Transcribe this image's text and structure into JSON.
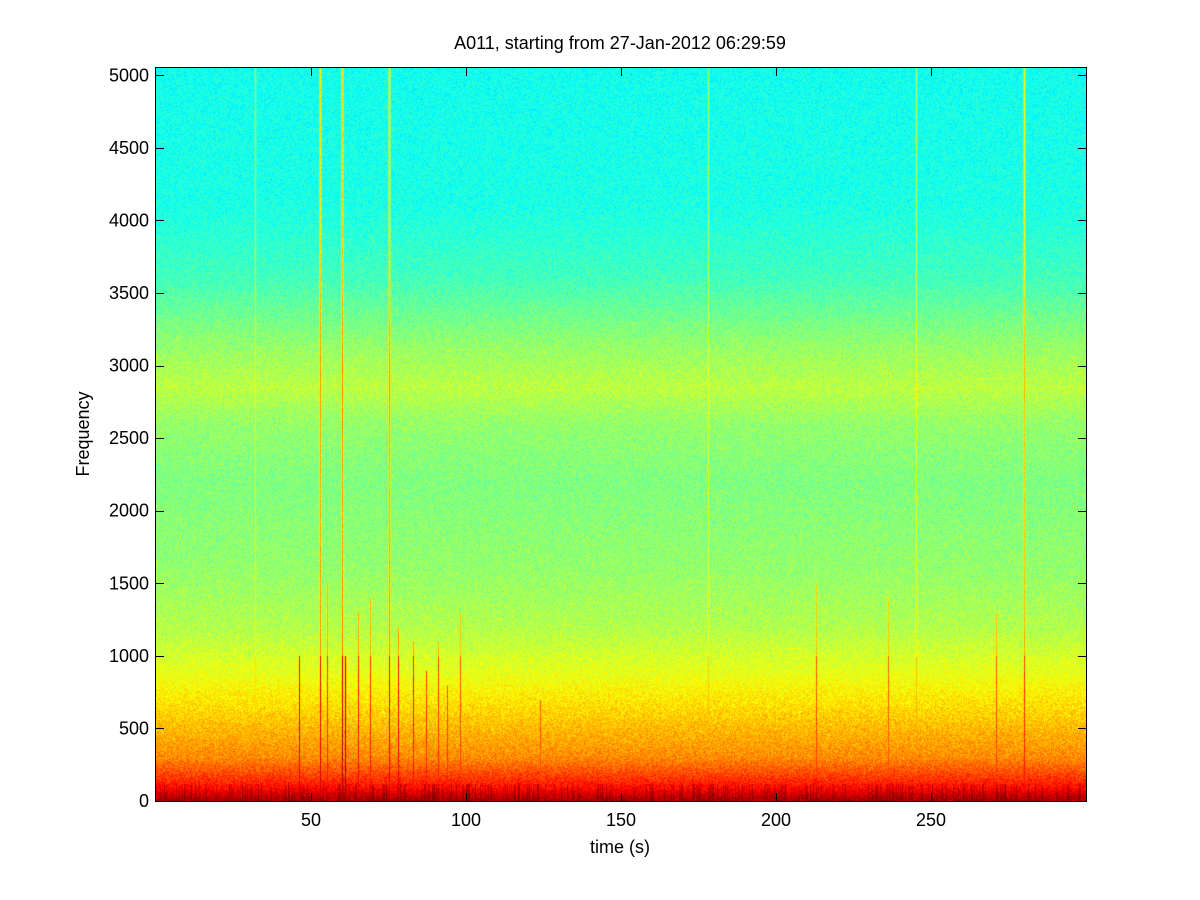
{
  "chart_data": {
    "type": "heatmap",
    "title": "A011, starting from 27-Jan-2012 06:29:59",
    "xlabel": "time (s)",
    "ylabel": "Frequency",
    "xlim": [
      0,
      300
    ],
    "ylim": [
      0,
      5050
    ],
    "xticks": [
      50,
      100,
      150,
      200,
      250
    ],
    "yticks": [
      0,
      500,
      1000,
      1500,
      2000,
      2500,
      3000,
      3500,
      4000,
      4500,
      5000
    ],
    "xtick_labels": [
      "50",
      "100",
      "150",
      "200",
      "250"
    ],
    "ytick_labels": [
      "0",
      "500",
      "1000",
      "1500",
      "2000",
      "2500",
      "3000",
      "3500",
      "4000",
      "4500",
      "5000"
    ],
    "grid": false,
    "colormap": "jet",
    "background_level_profile": [
      {
        "frequency": 0,
        "level": 0.97
      },
      {
        "frequency": 100,
        "level": 0.86
      },
      {
        "frequency": 300,
        "level": 0.74
      },
      {
        "frequency": 600,
        "level": 0.67
      },
      {
        "frequency": 900,
        "level": 0.6
      },
      {
        "frequency": 1200,
        "level": 0.55
      },
      {
        "frequency": 1600,
        "level": 0.52
      },
      {
        "frequency": 2200,
        "level": 0.5
      },
      {
        "frequency": 2600,
        "level": 0.52
      },
      {
        "frequency": 2850,
        "level": 0.56
      },
      {
        "frequency": 3150,
        "level": 0.52
      },
      {
        "frequency": 3600,
        "level": 0.44
      },
      {
        "frequency": 4100,
        "level": 0.4
      },
      {
        "frequency": 5050,
        "level": 0.39
      }
    ],
    "transient_events": [
      {
        "time": 32,
        "max_frequency": 5050,
        "level": 0.66
      },
      {
        "time": 46,
        "max_frequency": 1000,
        "level": 0.9
      },
      {
        "time": 53,
        "max_frequency": 5050,
        "level": 0.93
      },
      {
        "time": 55,
        "max_frequency": 1500,
        "level": 0.85
      },
      {
        "time": 60,
        "max_frequency": 5050,
        "level": 0.97
      },
      {
        "time": 61,
        "max_frequency": 1000,
        "level": 0.98
      },
      {
        "time": 65,
        "max_frequency": 1300,
        "level": 0.88
      },
      {
        "time": 69,
        "max_frequency": 1400,
        "level": 0.86
      },
      {
        "time": 75,
        "max_frequency": 5050,
        "level": 0.9
      },
      {
        "time": 78,
        "max_frequency": 1200,
        "level": 0.9
      },
      {
        "time": 83,
        "max_frequency": 1100,
        "level": 0.87
      },
      {
        "time": 87,
        "max_frequency": 900,
        "level": 0.85
      },
      {
        "time": 91,
        "max_frequency": 1100,
        "level": 0.84
      },
      {
        "time": 94,
        "max_frequency": 800,
        "level": 0.83
      },
      {
        "time": 98,
        "max_frequency": 1300,
        "level": 0.82
      },
      {
        "time": 124,
        "max_frequency": 700,
        "level": 0.8
      },
      {
        "time": 178,
        "max_frequency": 5050,
        "level": 0.68
      },
      {
        "time": 213,
        "max_frequency": 1500,
        "level": 0.82
      },
      {
        "time": 236,
        "max_frequency": 1400,
        "level": 0.8
      },
      {
        "time": 245,
        "max_frequency": 5050,
        "level": 0.7
      },
      {
        "time": 271,
        "max_frequency": 1300,
        "level": 0.82
      },
      {
        "time": 280,
        "max_frequency": 5050,
        "level": 0.86
      }
    ]
  }
}
